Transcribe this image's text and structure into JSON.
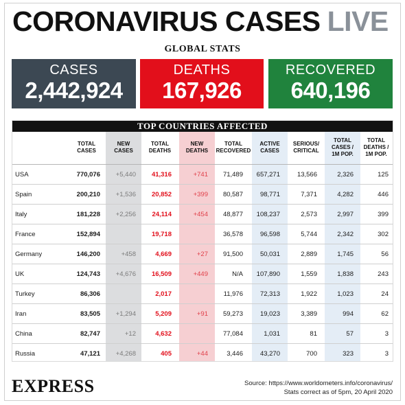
{
  "header": {
    "title": "CORONAVIRUS CASES",
    "title_live": "LIVE",
    "subhead": "GLOBAL STATS"
  },
  "global": {
    "cases": {
      "label": "CASES",
      "value": "2,442,924",
      "color": "#3c4853"
    },
    "deaths": {
      "label": "DEATHS",
      "value": "167,926",
      "color": "#e20f1b"
    },
    "recovered": {
      "label": "RECOVERED",
      "value": "640,196",
      "color": "#20833d"
    }
  },
  "table": {
    "title": "TOP COUNTRIES AFFECTED",
    "headers": {
      "total_cases": [
        "TOTAL",
        "CASES"
      ],
      "new_cases": [
        "NEW",
        "CASES"
      ],
      "total_deaths": [
        "TOTAL",
        "DEATHS"
      ],
      "new_deaths": [
        "NEW",
        "DEATHS"
      ],
      "total_recovered": [
        "TOTAL",
        "RECOVERED"
      ],
      "active_cases": [
        "ACTIVE",
        "CASES"
      ],
      "serious": [
        "SERIOUS/",
        "CRITICAL"
      ],
      "cases_per_1m": [
        "TOTAL",
        "CASES /",
        "1M POP."
      ],
      "deaths_per_1m": [
        "TOTAL",
        "DEATHS /",
        "1M POP."
      ]
    },
    "rows": [
      {
        "country": "USA",
        "total_cases": "770,076",
        "new_cases": "+5,440",
        "total_deaths": "41,316",
        "new_deaths": "+741",
        "total_recovered": "71,489",
        "active_cases": "657,271",
        "serious": "13,566",
        "cases_per_1m": "2,326",
        "deaths_per_1m": "125"
      },
      {
        "country": "Spain",
        "total_cases": "200,210",
        "new_cases": "+1,536",
        "total_deaths": "20,852",
        "new_deaths": "+399",
        "total_recovered": "80,587",
        "active_cases": "98,771",
        "serious": "7,371",
        "cases_per_1m": "4,282",
        "deaths_per_1m": "446"
      },
      {
        "country": "Italy",
        "total_cases": "181,228",
        "new_cases": "+2,256",
        "total_deaths": "24,114",
        "new_deaths": "+454",
        "total_recovered": "48,877",
        "active_cases": "108,237",
        "serious": "2,573",
        "cases_per_1m": "2,997",
        "deaths_per_1m": "399"
      },
      {
        "country": "France",
        "total_cases": "152,894",
        "new_cases": "",
        "total_deaths": "19,718",
        "new_deaths": "",
        "total_recovered": "36,578",
        "active_cases": "96,598",
        "serious": "5,744",
        "cases_per_1m": "2,342",
        "deaths_per_1m": "302"
      },
      {
        "country": "Germany",
        "total_cases": "146,200",
        "new_cases": "+458",
        "total_deaths": "4,669",
        "new_deaths": "+27",
        "total_recovered": "91,500",
        "active_cases": "50,031",
        "serious": "2,889",
        "cases_per_1m": "1,745",
        "deaths_per_1m": "56"
      },
      {
        "country": "UK",
        "total_cases": "124,743",
        "new_cases": "+4,676",
        "total_deaths": "16,509",
        "new_deaths": "+449",
        "total_recovered": "N/A",
        "active_cases": "107,890",
        "serious": "1,559",
        "cases_per_1m": "1,838",
        "deaths_per_1m": "243"
      },
      {
        "country": "Turkey",
        "total_cases": "86,306",
        "new_cases": "",
        "total_deaths": "2,017",
        "new_deaths": "",
        "total_recovered": "11,976",
        "active_cases": "72,313",
        "serious": "1,922",
        "cases_per_1m": "1,023",
        "deaths_per_1m": "24"
      },
      {
        "country": "Iran",
        "total_cases": "83,505",
        "new_cases": "+1,294",
        "total_deaths": "5,209",
        "new_deaths": "+91",
        "total_recovered": "59,273",
        "active_cases": "19,023",
        "serious": "3,389",
        "cases_per_1m": "994",
        "deaths_per_1m": "62"
      },
      {
        "country": "China",
        "total_cases": "82,747",
        "new_cases": "+12",
        "total_deaths": "4,632",
        "new_deaths": "",
        "total_recovered": "77,084",
        "active_cases": "1,031",
        "serious": "81",
        "cases_per_1m": "57",
        "deaths_per_1m": "3"
      },
      {
        "country": "Russia",
        "total_cases": "47,121",
        "new_cases": "+4,268",
        "total_deaths": "405",
        "new_deaths": "+44",
        "total_recovered": "3,446",
        "active_cases": "43,270",
        "serious": "700",
        "cases_per_1m": "323",
        "deaths_per_1m": "3"
      }
    ]
  },
  "footer": {
    "brand": "EXPRESS",
    "source": "Source: https://www.worldometers.info/coronavirus/",
    "note": "Stats correct as of 5pm, 20 April 2020"
  }
}
